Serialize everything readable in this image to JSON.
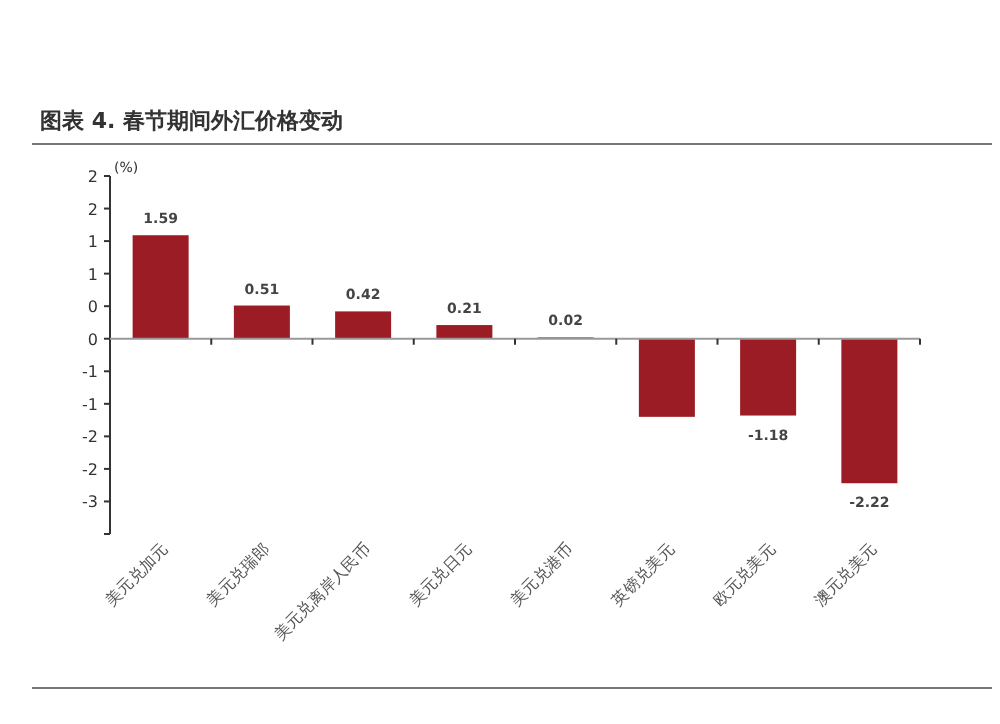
{
  "chart_data": {
    "type": "bar",
    "title": "图表 4. 春节期间外汇价格变动",
    "ylabel": "(%)",
    "categories": [
      "美元兑加元",
      "美元兑瑞郎",
      "美元兑离岸人民币",
      "美元兑日元",
      "美元兑港币",
      "英镑兑美元",
      "欧元兑美元",
      "澳元兑美元"
    ],
    "values": [
      1.59,
      0.51,
      0.42,
      0.21,
      0.02,
      -1.2,
      -1.18,
      -2.22
    ],
    "value_labels": [
      "1.59",
      "0.51",
      "0.42",
      "0.21",
      "0.02",
      null,
      "-1.18",
      "-2.22"
    ],
    "color": "#9b1c24",
    "ylim": [
      -3,
      2.5
    ],
    "yticks": [
      {
        "value": 2.5,
        "label": "2"
      },
      {
        "value": 2,
        "label": "2"
      },
      {
        "value": 1.5,
        "label": "1"
      },
      {
        "value": 1,
        "label": "1"
      },
      {
        "value": 0.5,
        "label": "0"
      },
      {
        "value": 0,
        "label": "0"
      },
      {
        "value": -0.5,
        "label": "-1"
      },
      {
        "value": -1,
        "label": "-1"
      },
      {
        "value": -1.5,
        "label": "-2"
      },
      {
        "value": -2,
        "label": "-2"
      },
      {
        "value": -2.5,
        "label": "-3"
      },
      {
        "value": -3,
        "label": null
      }
    ]
  }
}
